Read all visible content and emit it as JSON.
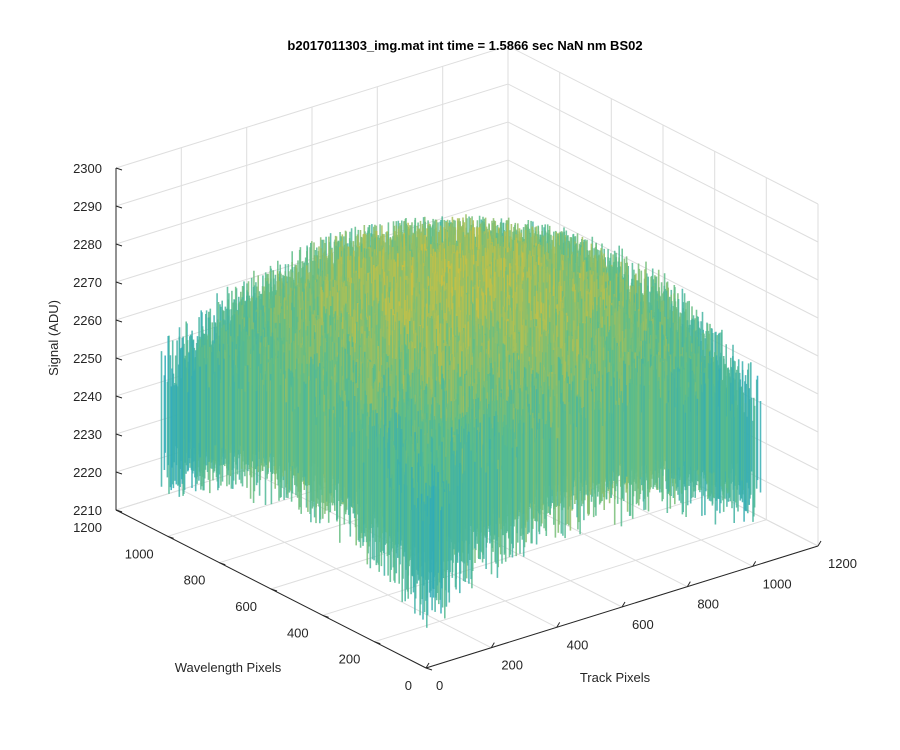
{
  "chart_data": {
    "type": "surface",
    "title": "b2017011303_img.mat int time = 1.5866 sec  NaN nm BS02",
    "xlabel": "Track Pixels",
    "ylabel": "Wavelength Pixels",
    "zlabel": "Signal (ADU)",
    "xlim": [
      0,
      1200
    ],
    "ylim": [
      0,
      1200
    ],
    "zlim": [
      2210,
      2300
    ],
    "xticks": [
      "0",
      "200",
      "400",
      "600",
      "800",
      "1000",
      "1200"
    ],
    "yticks": [
      "0",
      "200",
      "400",
      "600",
      "800",
      "1000",
      "1200"
    ],
    "zticks": [
      "2210",
      "2220",
      "2230",
      "2240",
      "2250",
      "2260",
      "2270",
      "2280",
      "2290",
      "2300"
    ],
    "grid": true,
    "colormap": "parula",
    "surface_extent": {
      "x": [
        0,
        1024
      ],
      "y": [
        0,
        1024
      ]
    },
    "signal_range": [
      2215,
      2295
    ],
    "signal_mean": 2253,
    "colors": {
      "low": "#1fa5c9",
      "mid": "#5cbd8a",
      "high": "#e0c034",
      "axis": "#262626",
      "grid": "#dedede"
    }
  }
}
